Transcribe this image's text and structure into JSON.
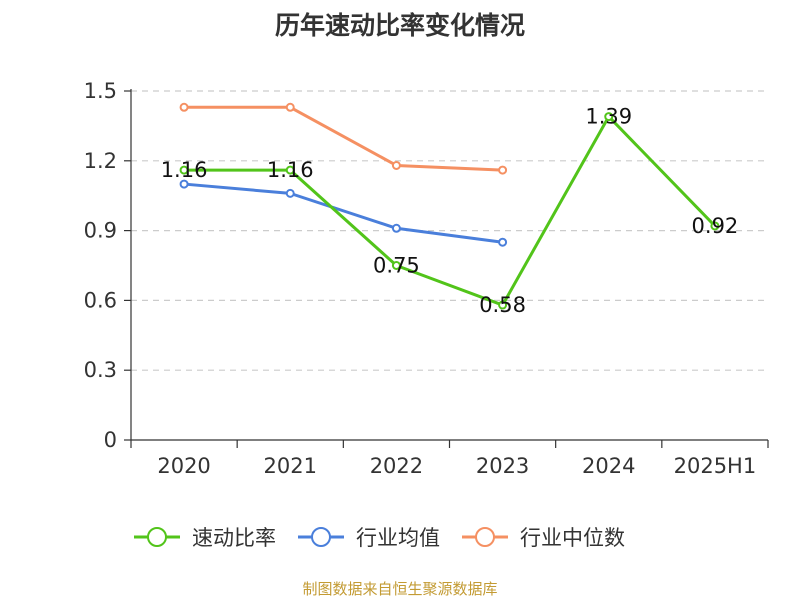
{
  "title": "历年速动比率变化情况",
  "source": "制图数据来自恒生聚源数据库",
  "chart_data": {
    "type": "line",
    "title": "历年速动比率变化情况",
    "categories": [
      "2020",
      "2021",
      "2022",
      "2023",
      "2024",
      "2025H1"
    ],
    "ylim": [
      0,
      1.5
    ],
    "yticks": [
      "0",
      "0.3",
      "0.6",
      "0.9",
      "1.2",
      "1.5"
    ],
    "grid": true,
    "legend_position": "bottom",
    "series": [
      {
        "name": "速动比率",
        "color": "#52c41a",
        "values": [
          1.16,
          1.16,
          0.75,
          0.58,
          1.39,
          0.92
        ],
        "labels": [
          "1.16",
          "1.16",
          "0.75",
          "0.58",
          "1.39",
          "0.92"
        ]
      },
      {
        "name": "行业均值",
        "color": "#4a7fdb",
        "values": [
          1.1,
          1.06,
          0.91,
          0.85,
          null,
          null
        ],
        "labels": null
      },
      {
        "name": "行业中位数",
        "color": "#f59062",
        "values": [
          1.43,
          1.43,
          1.18,
          1.16,
          null,
          null
        ],
        "labels": null
      }
    ]
  }
}
